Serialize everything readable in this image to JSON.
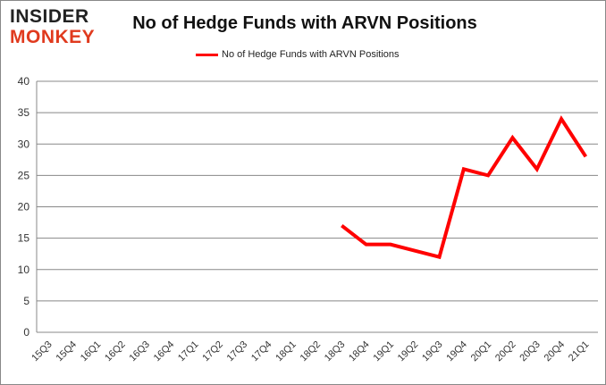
{
  "logo": {
    "line1": "INSIDER",
    "line2": "MONKEY"
  },
  "chart_data": {
    "type": "line",
    "title": "No of Hedge Funds with ARVN Positions",
    "xlabel": "",
    "ylabel": "",
    "categories": [
      "15Q3",
      "15Q4",
      "16Q1",
      "16Q2",
      "16Q3",
      "16Q4",
      "17Q1",
      "17Q2",
      "17Q3",
      "17Q4",
      "18Q1",
      "18Q2",
      "18Q3",
      "18Q4",
      "19Q1",
      "19Q2",
      "19Q3",
      "19Q4",
      "20Q1",
      "20Q2",
      "20Q3",
      "20Q4",
      "21Q1"
    ],
    "series": [
      {
        "name": "No of Hedge Funds with ARVN Positions",
        "color": "#ff0000",
        "values": [
          null,
          null,
          null,
          null,
          null,
          null,
          null,
          null,
          null,
          null,
          null,
          null,
          17,
          14,
          14,
          13,
          12,
          26,
          25,
          31,
          26,
          34,
          28
        ]
      }
    ],
    "ylim": [
      0,
      40
    ],
    "yticks": [
      0,
      5,
      10,
      15,
      20,
      25,
      30,
      35,
      40
    ],
    "grid": true,
    "legend": "top-center"
  }
}
